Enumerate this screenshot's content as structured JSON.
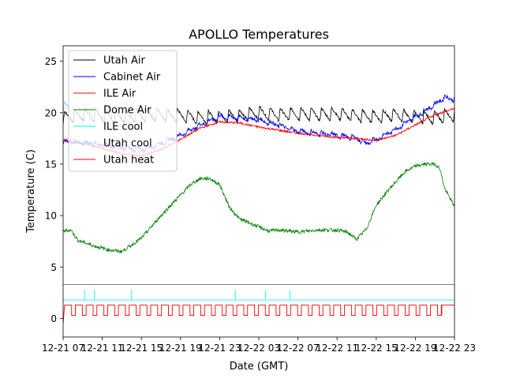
{
  "chart_data": {
    "type": "line",
    "title": "APOLLO Temperatures",
    "xlabel": "Date (GMT)",
    "ylabel": "Temperature (C)",
    "x_unit": "hours since 12-21 07:00 GMT",
    "xlim": [
      0,
      40
    ],
    "ylim": [
      -1.8,
      26.5
    ],
    "yticks": [
      0,
      5,
      10,
      15,
      20,
      25
    ],
    "xticks": [
      {
        "x": 0,
        "label": "12-21 07"
      },
      {
        "x": 4,
        "label": "12-21 11"
      },
      {
        "x": 8,
        "label": "12-21 15"
      },
      {
        "x": 12,
        "label": "12-21 19"
      },
      {
        "x": 16,
        "label": "12-21 23"
      },
      {
        "x": 20,
        "label": "12-22 03"
      },
      {
        "x": 24,
        "label": "12-22 07"
      },
      {
        "x": 28,
        "label": "12-22 11"
      },
      {
        "x": 32,
        "label": "12-22 15"
      },
      {
        "x": 36,
        "label": "12-22 19"
      },
      {
        "x": 40,
        "label": "12-22 23"
      }
    ],
    "separator_y": 3.3,
    "legend_position": "upper left",
    "series": [
      {
        "name": "Utah Air",
        "color": "#000000",
        "x": [
          0,
          2,
          4,
          6,
          8,
          10,
          12,
          14,
          16,
          18,
          20,
          22,
          24,
          26,
          28,
          30,
          32,
          34,
          36,
          38,
          40
        ],
        "y": [
          19.5,
          19.8,
          19.7,
          19.6,
          19.7,
          19.8,
          19.7,
          19.5,
          19.6,
          19.7,
          20.0,
          19.8,
          19.9,
          19.8,
          19.9,
          19.7,
          19.6,
          19.8,
          19.6,
          19.5,
          19.8
        ]
      },
      {
        "name": "Cabinet Air",
        "color": "#0000ff",
        "x": [
          0,
          3,
          6,
          8,
          10,
          12,
          14,
          16,
          18,
          20,
          22,
          24,
          26,
          28,
          30,
          31,
          32,
          34,
          36,
          38,
          39,
          40
        ],
        "y": [
          17.2,
          17.0,
          16.6,
          16.4,
          17.0,
          17.8,
          18.8,
          19.6,
          19.5,
          19.3,
          18.8,
          18.2,
          18.0,
          17.8,
          17.5,
          17.0,
          17.4,
          18.4,
          19.6,
          20.8,
          21.5,
          21.3
        ]
      },
      {
        "name": "ILE Air",
        "color": "#ff0000",
        "x": [
          0,
          3,
          6,
          8,
          10,
          12,
          14,
          16,
          18,
          20,
          22,
          24,
          26,
          28,
          30,
          32,
          34,
          36,
          38,
          40
        ],
        "y": [
          17.4,
          16.8,
          16.0,
          15.8,
          16.4,
          17.4,
          18.5,
          19.1,
          19.0,
          18.6,
          18.3,
          18.0,
          17.8,
          17.6,
          17.5,
          17.3,
          17.8,
          18.8,
          19.8,
          20.4
        ]
      },
      {
        "name": "Dome Air",
        "color": "#008000",
        "x": [
          0,
          0.8,
          1.5,
          3,
          4.5,
          6,
          8,
          10,
          12,
          13,
          14,
          15,
          16,
          17,
          18,
          20,
          21,
          22,
          24,
          26,
          28,
          29,
          30,
          31,
          32,
          33,
          34,
          35,
          36,
          37,
          38,
          38.5,
          39,
          40
        ],
        "y": [
          8.5,
          8.6,
          7.6,
          7.1,
          6.7,
          6.5,
          7.8,
          10.0,
          12.0,
          13.0,
          13.6,
          13.6,
          13.0,
          10.8,
          9.7,
          8.9,
          8.5,
          8.6,
          8.4,
          8.6,
          8.6,
          8.4,
          7.7,
          8.7,
          11.0,
          12.2,
          13.3,
          14.3,
          14.8,
          15.0,
          15.0,
          14.6,
          12.6,
          10.9
        ]
      },
      {
        "name": "ILE cool",
        "color": "#00ffff",
        "baseline": 1.8,
        "spike_top": 2.8,
        "spikes": [
          2.2,
          3.2,
          7.0,
          17.6,
          20.7,
          23.2
        ]
      },
      {
        "name": "Utah cool",
        "color": "#b7d0ee",
        "x": [
          0,
          2,
          4,
          6,
          8,
          9.6
        ],
        "y": [
          20.5,
          20.3,
          20.0,
          20.2,
          19.9,
          20.1
        ]
      },
      {
        "name": "Utah heat",
        "color": "#ff0000",
        "period_hours": 1.1,
        "duty": 0.65,
        "low": 0.3,
        "high": 1.3,
        "end_on_from": 38.7,
        "start_min": -0.5
      }
    ]
  }
}
